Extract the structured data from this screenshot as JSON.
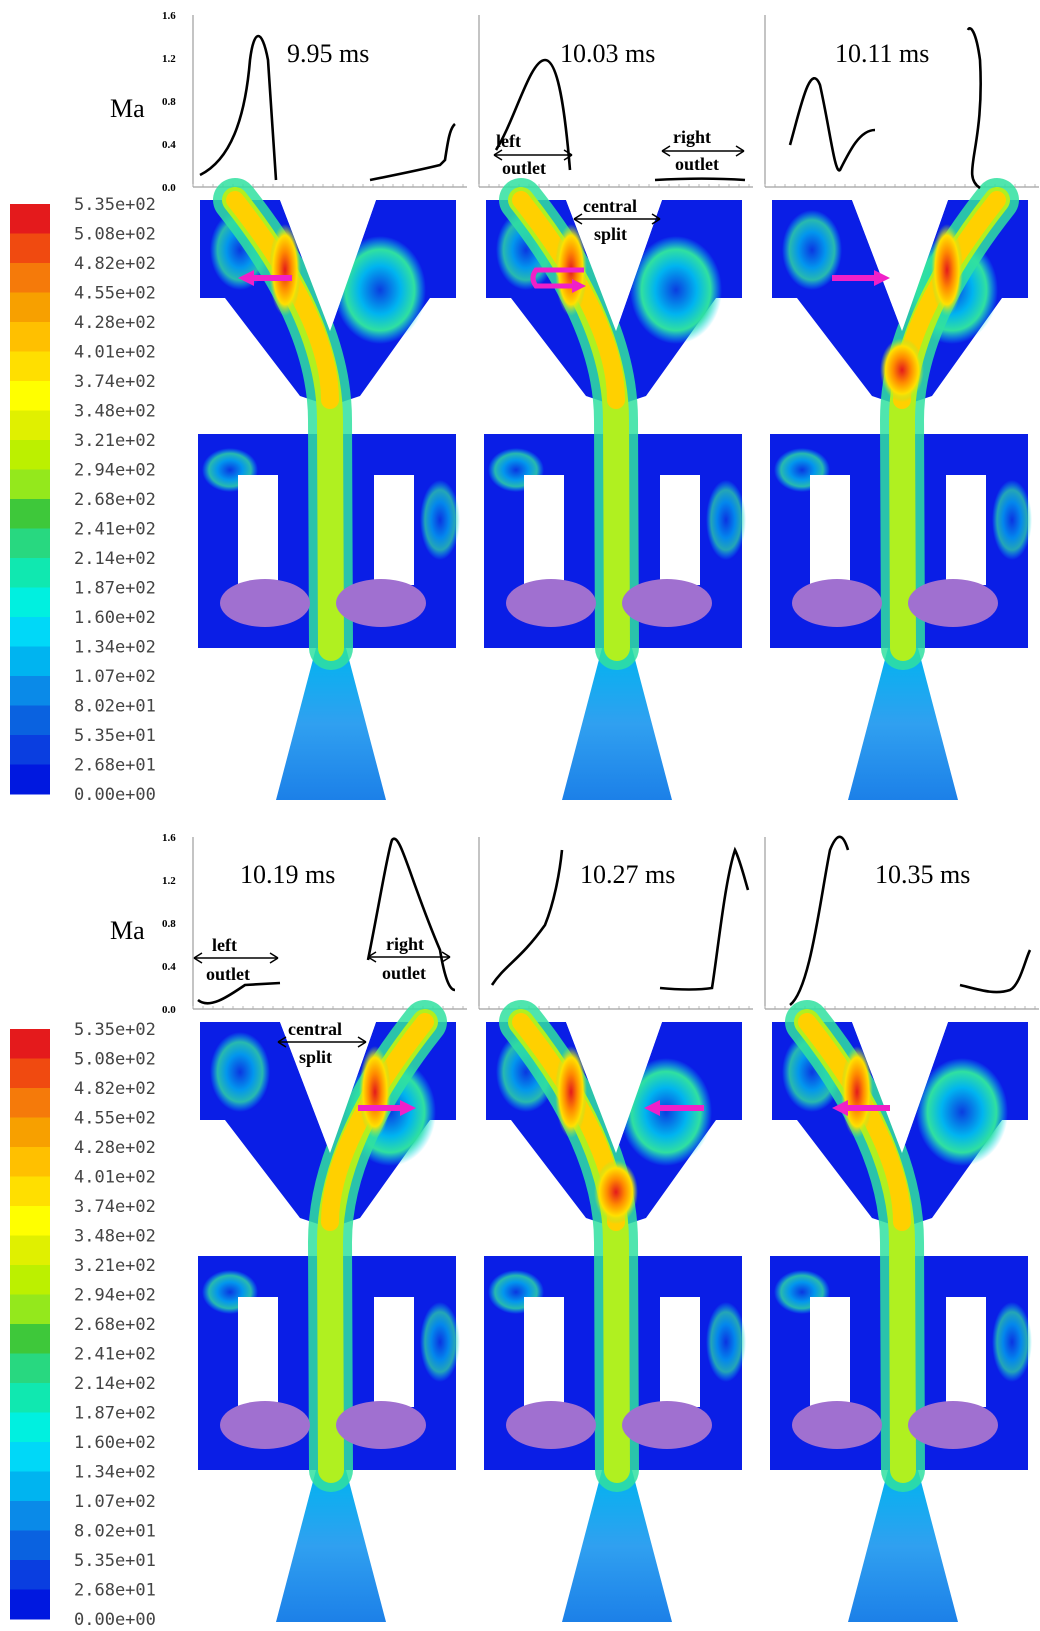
{
  "colorbar": {
    "labels": [
      "5.35e+02",
      "5.08e+02",
      "4.82e+02",
      "4.55e+02",
      "4.28e+02",
      "4.01e+02",
      "3.74e+02",
      "3.48e+02",
      "3.21e+02",
      "2.94e+02",
      "2.68e+02",
      "2.41e+02",
      "2.14e+02",
      "1.87e+02",
      "1.60e+02",
      "1.34e+02",
      "1.07e+02",
      "8.02e+01",
      "5.35e+01",
      "2.68e+01",
      "0.00e+00"
    ],
    "colors": [
      "#e41a1c",
      "#f04a10",
      "#f57a0a",
      "#f7a000",
      "#ffc000",
      "#ffdf00",
      "#ffff00",
      "#e0f000",
      "#bcf000",
      "#94e81c",
      "#3ec83a",
      "#28d880",
      "#10e8b0",
      "#00f0e0",
      "#00d8f8",
      "#00b4f0",
      "#0a8ae8",
      "#0a62e0",
      "#0a3ee0",
      "#0018e0"
    ]
  },
  "ma_axis": {
    "label": "Ma",
    "ticks": [
      "1.6",
      "1.2",
      "0.8",
      "0.4",
      "0.0"
    ]
  },
  "annotations": {
    "left_outlet": [
      "left",
      "outlet"
    ],
    "right_outlet": [
      "right",
      "outlet"
    ],
    "central_split": [
      "central",
      "split"
    ]
  },
  "panels": [
    {
      "time": "9.95 ms",
      "arrow": "left"
    },
    {
      "time": "10.03 ms",
      "arrow": "loop"
    },
    {
      "time": "10.11 ms",
      "arrow": "right"
    },
    {
      "time": "10.19 ms",
      "arrow": "right"
    },
    {
      "time": "10.27 ms",
      "arrow": "left"
    },
    {
      "time": "10.35 ms",
      "arrow": "left"
    }
  ],
  "colors": {
    "background_fluid": "#0a1ee6",
    "jet_core": "#ffd000",
    "electrode": "#a070d0",
    "arrow": "#f020c8"
  }
}
